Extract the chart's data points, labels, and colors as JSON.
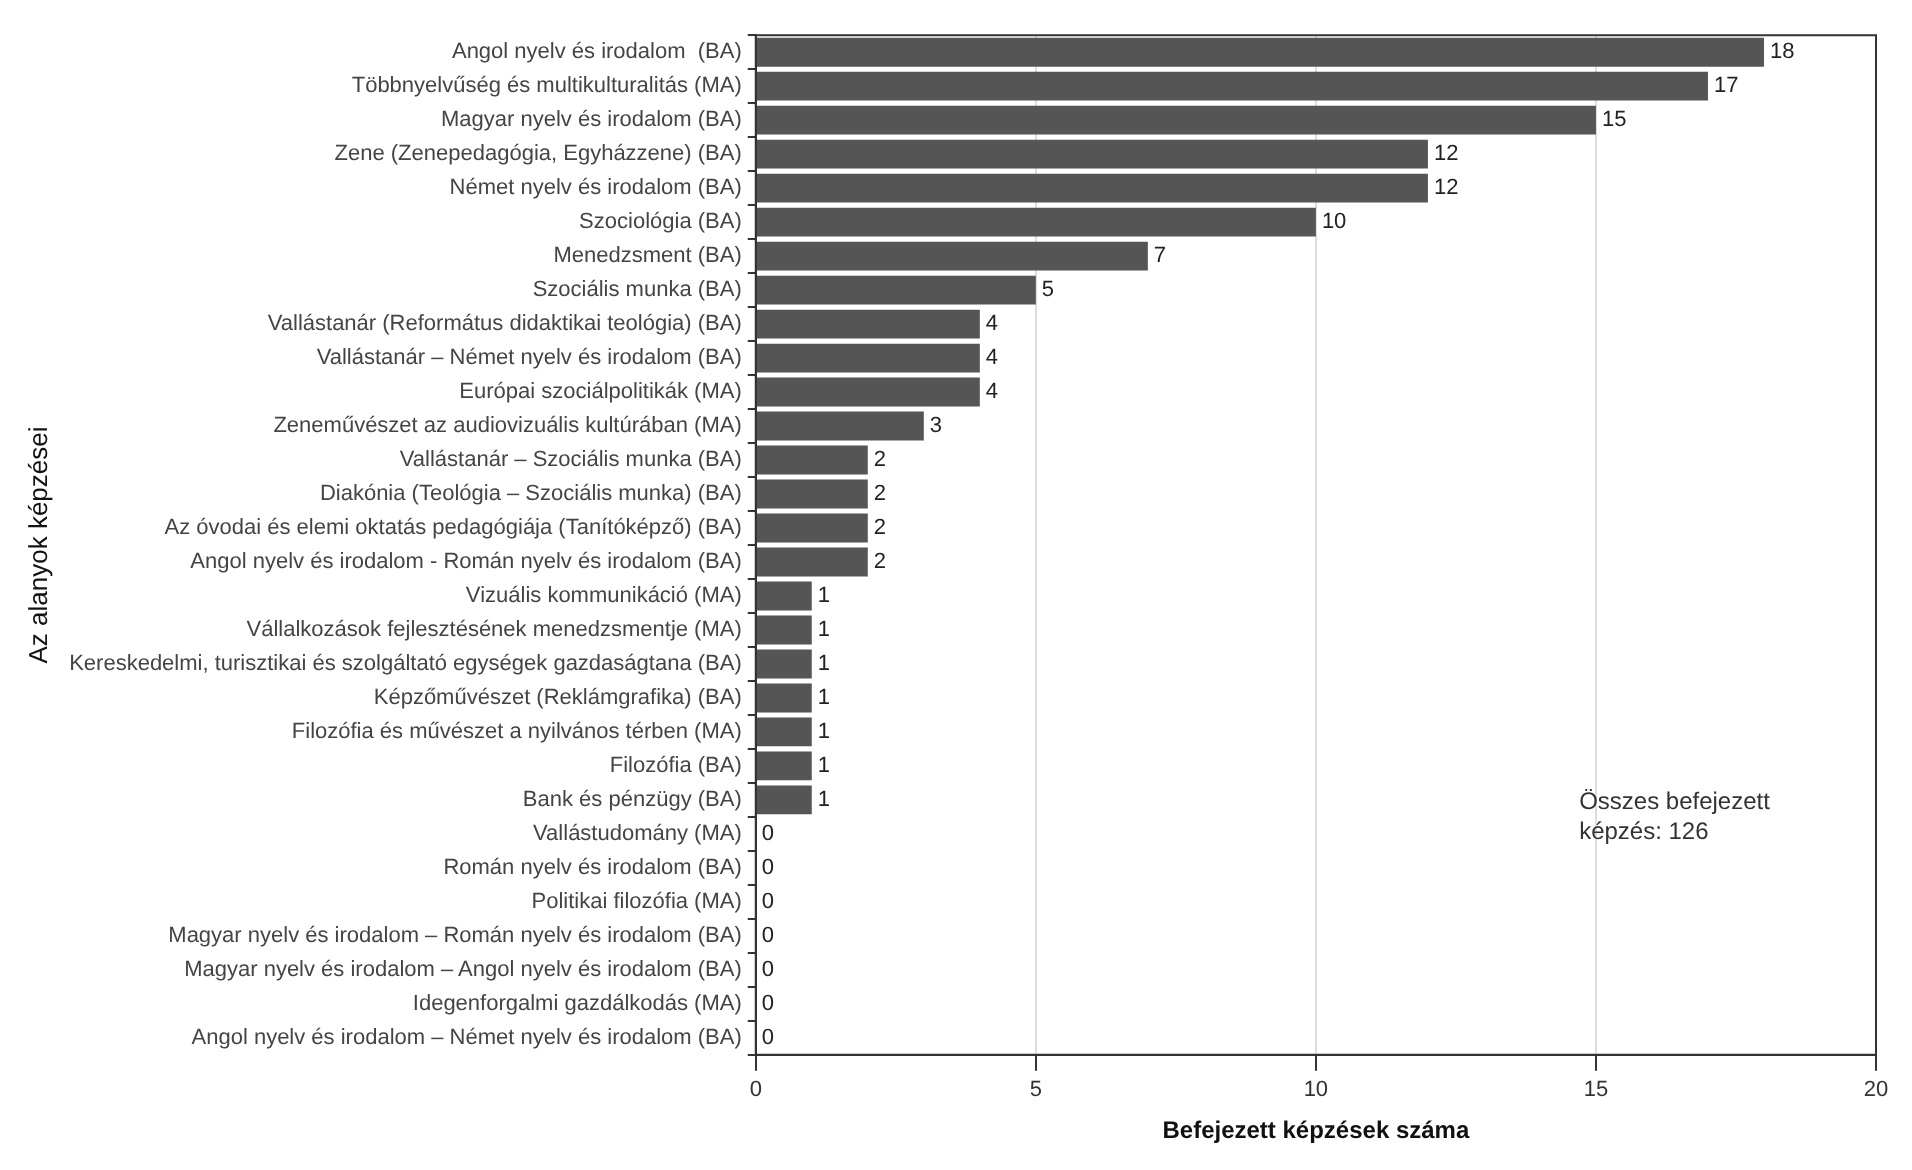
{
  "chart_data": {
    "type": "bar",
    "orientation": "horizontal",
    "xlabel": "Befejezett képzések száma",
    "ylabel": "Az alanyok képzései",
    "categories": [
      "Angol nyelv és irodalom  (BA)",
      "Többnyelvűség és multikulturalitás (MA)",
      "Magyar nyelv és irodalom (BA)",
      "Zene (Zenepedagógia, Egyházzene) (BA)",
      "Német nyelv és irodalom (BA)",
      "Szociológia (BA)",
      "Menedzsment (BA)",
      "Szociális munka (BA)",
      "Vallástanár (Református didaktikai teológia) (BA)",
      "Vallástanár – Német nyelv és irodalom (BA)",
      "Európai szociálpolitikák (MA)",
      "Zeneművészet az audiovizuális kultúrában (MA)",
      "Vallástanár – Szociális munka (BA)",
      "Diakónia (Teológia – Szociális munka) (BA)",
      "Az óvodai és elemi oktatás pedagógiája (Tanítóképző) (BA)",
      "Angol nyelv és irodalom - Román nyelv és irodalom (BA)",
      "Vizuális kommunikáció (MA)",
      "Vállalkozások fejlesztésének menedzsmentje (MA)",
      "Kereskedelmi, turisztikai és szolgáltató egységek gazdaságtana (BA)",
      "Képzőművészet (Reklámgrafika) (BA)",
      "Filozófia és művészet a nyilvános térben (MA)",
      "Filozófia (BA)",
      "Bank és pénzügy (BA)",
      "Vallástudomány (MA)",
      "Román nyelv és irodalom (BA)",
      "Politikai filozófia (MA)",
      "Magyar nyelv és irodalom – Román nyelv és irodalom (BA)",
      "Magyar nyelv és irodalom – Angol nyelv és irodalom (BA)",
      "Idegenforgalmi gazdálkodás (MA)",
      "Angol nyelv és irodalom – Német nyelv és irodalom (BA)"
    ],
    "values": [
      18,
      17,
      15,
      12,
      12,
      10,
      7,
      5,
      4,
      4,
      4,
      3,
      2,
      2,
      2,
      2,
      1,
      1,
      1,
      1,
      1,
      1,
      1,
      0,
      0,
      0,
      0,
      0,
      0,
      0
    ],
    "color": "#555555",
    "xlim": [
      0,
      20
    ],
    "xticks": [
      0,
      5,
      10,
      15,
      20
    ],
    "grid": "x",
    "data_labels": true,
    "annotations": [
      "Összes befejezett képzés: 126"
    ]
  }
}
